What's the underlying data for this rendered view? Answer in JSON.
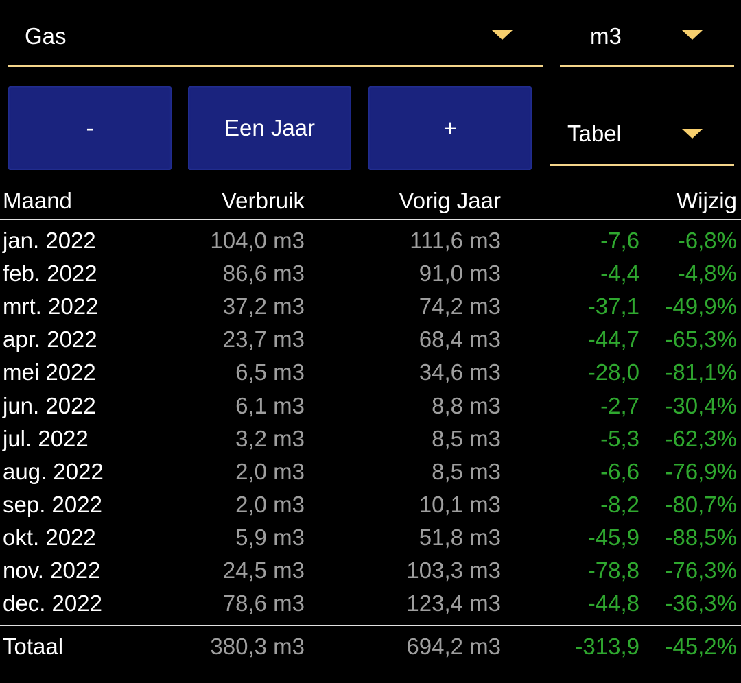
{
  "controls": {
    "energy_type": "Gas",
    "unit": "m3",
    "view_mode": "Tabel",
    "prev_button": "-",
    "period_button": "Een Jaar",
    "next_button": "+"
  },
  "table": {
    "headers": {
      "month": "Maand",
      "usage": "Verbruik",
      "previous_year": "Vorig Jaar",
      "change": "Wijzig"
    },
    "rows": [
      {
        "month": "jan. 2022",
        "usage": "104,0 m3",
        "previous": "111,6 m3",
        "diff": "-7,6",
        "pct": "-6,8%"
      },
      {
        "month": "feb. 2022",
        "usage": "86,6 m3",
        "previous": "91,0 m3",
        "diff": "-4,4",
        "pct": "-4,8%"
      },
      {
        "month": "mrt. 2022",
        "usage": "37,2 m3",
        "previous": "74,2 m3",
        "diff": "-37,1",
        "pct": "-49,9%"
      },
      {
        "month": "apr. 2022",
        "usage": "23,7 m3",
        "previous": "68,4 m3",
        "diff": "-44,7",
        "pct": "-65,3%"
      },
      {
        "month": "mei 2022",
        "usage": "6,5 m3",
        "previous": "34,6 m3",
        "diff": "-28,0",
        "pct": "-81,1%"
      },
      {
        "month": "jun. 2022",
        "usage": "6,1 m3",
        "previous": "8,8 m3",
        "diff": "-2,7",
        "pct": "-30,4%"
      },
      {
        "month": "jul. 2022",
        "usage": "3,2 m3",
        "previous": "8,5 m3",
        "diff": "-5,3",
        "pct": "-62,3%"
      },
      {
        "month": "aug. 2022",
        "usage": "2,0 m3",
        "previous": "8,5 m3",
        "diff": "-6,6",
        "pct": "-76,9%"
      },
      {
        "month": "sep. 2022",
        "usage": "2,0 m3",
        "previous": "10,1 m3",
        "diff": "-8,2",
        "pct": "-80,7%"
      },
      {
        "month": "okt. 2022",
        "usage": "5,9 m3",
        "previous": "51,8 m3",
        "diff": "-45,9",
        "pct": "-88,5%"
      },
      {
        "month": "nov. 2022",
        "usage": "24,5 m3",
        "previous": "103,3 m3",
        "diff": "-78,8",
        "pct": "-76,3%"
      },
      {
        "month": "dec. 2022",
        "usage": "78,6 m3",
        "previous": "123,4 m3",
        "diff": "-44,8",
        "pct": "-36,3%"
      }
    ],
    "total": {
      "label": "Totaal",
      "usage": "380,3 m3",
      "previous": "694,2 m3",
      "diff": "-313,9",
      "pct": "-45,2%"
    }
  },
  "colors": {
    "accent": "#f3d48a",
    "button": "#1a237e",
    "positive_change": "#2fa82f",
    "muted_text": "#9e9e9e"
  }
}
